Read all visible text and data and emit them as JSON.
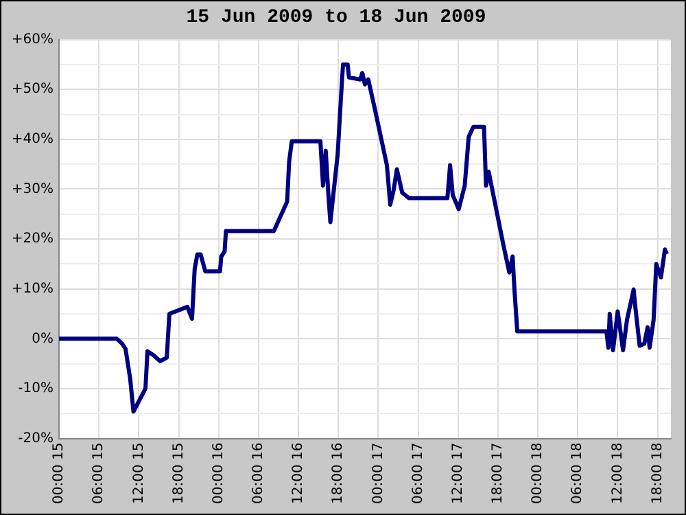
{
  "chart_data": {
    "type": "line",
    "title": "15 Jun 2009 to 18 Jun 2009",
    "x": [
      "2009-06-15T00:00",
      "2009-06-15T08:42",
      "2009-06-15T09:30",
      "2009-06-15T10:00",
      "2009-06-15T10:42",
      "2009-06-15T11:12",
      "2009-06-15T13:00",
      "2009-06-15T13:18",
      "2009-06-15T14:12",
      "2009-06-15T15:12",
      "2009-06-15T16:12",
      "2009-06-15T16:36",
      "2009-06-15T19:18",
      "2009-06-15T20:00",
      "2009-06-15T20:24",
      "2009-06-15T20:48",
      "2009-06-15T21:18",
      "2009-06-15T22:00",
      "2009-06-16T00:12",
      "2009-06-16T00:24",
      "2009-06-16T00:54",
      "2009-06-16T01:06",
      "2009-06-16T08:18",
      "2009-06-16T10:18",
      "2009-06-16T10:36",
      "2009-06-16T11:00",
      "2009-06-16T15:18",
      "2009-06-16T15:42",
      "2009-06-16T16:06",
      "2009-06-16T16:30",
      "2009-06-16T16:48",
      "2009-06-16T17:18",
      "2009-06-16T17:54",
      "2009-06-16T18:24",
      "2009-06-16T18:42",
      "2009-06-16T19:24",
      "2009-06-16T19:36",
      "2009-06-16T21:18",
      "2009-06-16T21:36",
      "2009-06-16T22:00",
      "2009-06-16T22:30",
      "2009-06-16T23:30",
      "2009-06-17T01:18",
      "2009-06-17T01:48",
      "2009-06-17T02:18",
      "2009-06-17T02:48",
      "2009-06-17T03:36",
      "2009-06-17T04:36",
      "2009-06-17T10:24",
      "2009-06-17T10:48",
      "2009-06-17T11:12",
      "2009-06-17T12:06",
      "2009-06-17T13:00",
      "2009-06-17T13:36",
      "2009-06-17T14:18",
      "2009-06-17T15:54",
      "2009-06-17T16:12",
      "2009-06-17T16:36",
      "2009-06-17T17:06",
      "2009-06-17T18:48",
      "2009-06-17T19:42",
      "2009-06-17T20:12",
      "2009-06-17T20:30",
      "2009-06-17T20:54",
      "2009-06-18T10:18",
      "2009-06-18T10:36",
      "2009-06-18T10:48",
      "2009-06-18T11:18",
      "2009-06-18T12:00",
      "2009-06-18T12:48",
      "2009-06-18T13:24",
      "2009-06-18T14:24",
      "2009-06-18T14:36",
      "2009-06-18T15:18",
      "2009-06-18T16:00",
      "2009-06-18T16:30",
      "2009-06-18T16:48",
      "2009-06-18T17:24",
      "2009-06-18T17:48",
      "2009-06-18T18:30",
      "2009-06-18T19:06",
      "2009-06-18T19:24"
    ],
    "series": [
      {
        "color": "#000080",
        "values": [
          0,
          0,
          -1,
          -2,
          -8,
          -14.6,
          -10,
          -2.5,
          -3.3,
          -4.5,
          -3.8,
          5,
          6.4,
          4,
          14,
          16.9,
          16.9,
          13.5,
          13.5,
          16.5,
          17.5,
          21.6,
          21.6,
          27.5,
          35.5,
          39.6,
          39.6,
          30.7,
          37.7,
          29,
          23.4,
          29.6,
          37,
          48.5,
          55,
          55,
          52.4,
          52,
          53.3,
          51,
          52,
          46,
          34.8,
          26.9,
          29.7,
          34,
          29.3,
          28.2,
          28.2,
          34.8,
          28.8,
          26,
          30.7,
          40.5,
          42.5,
          42.5,
          30.7,
          33.5,
          30.2,
          18.9,
          13.3,
          16.5,
          9.4,
          1.5,
          1.5,
          -1.8,
          5,
          -2.3,
          5.5,
          -2.3,
          3.8,
          9.9,
          7,
          -1.4,
          -1,
          2.3,
          -1.8,
          3.8,
          15,
          12.3,
          17.9,
          17
        ]
      }
    ],
    "xlim": [
      "2009-06-15T00:00",
      "2009-06-18T20:00"
    ],
    "xticks": [
      {
        "value": "2009-06-15T00:00",
        "label": "00:00 15"
      },
      {
        "value": "2009-06-15T06:00",
        "label": "06:00 15"
      },
      {
        "value": "2009-06-15T12:00",
        "label": "12:00 15"
      },
      {
        "value": "2009-06-15T18:00",
        "label": "18:00 15"
      },
      {
        "value": "2009-06-16T00:00",
        "label": "00:00 16"
      },
      {
        "value": "2009-06-16T06:00",
        "label": "06:00 16"
      },
      {
        "value": "2009-06-16T12:00",
        "label": "12:00 16"
      },
      {
        "value": "2009-06-16T18:00",
        "label": "18:00 16"
      },
      {
        "value": "2009-06-17T00:00",
        "label": "00:00 17"
      },
      {
        "value": "2009-06-17T06:00",
        "label": "06:00 17"
      },
      {
        "value": "2009-06-17T12:00",
        "label": "12:00 17"
      },
      {
        "value": "2009-06-17T18:00",
        "label": "18:00 17"
      },
      {
        "value": "2009-06-18T00:00",
        "label": "00:00 18"
      },
      {
        "value": "2009-06-18T06:00",
        "label": "06:00 18"
      },
      {
        "value": "2009-06-18T12:00",
        "label": "12:00 18"
      },
      {
        "value": "2009-06-18T18:00",
        "label": "18:00 18"
      }
    ],
    "ylim": [
      -20,
      60
    ],
    "yticks": [
      {
        "value": -20,
        "label": "-20%"
      },
      {
        "value": -15,
        "label": null
      },
      {
        "value": -10,
        "label": "-10%"
      },
      {
        "value": -5,
        "label": null
      },
      {
        "value": 0,
        "label": "0%"
      },
      {
        "value": 5,
        "label": null
      },
      {
        "value": 10,
        "label": "+10%"
      },
      {
        "value": 15,
        "label": null
      },
      {
        "value": 20,
        "label": "+20%"
      },
      {
        "value": 25,
        "label": null
      },
      {
        "value": 30,
        "label": "+30%"
      },
      {
        "value": 35,
        "label": null
      },
      {
        "value": 40,
        "label": "+40%"
      },
      {
        "value": 45,
        "label": null
      },
      {
        "value": 50,
        "label": "+50%"
      },
      {
        "value": 55,
        "label": null
      },
      {
        "value": 60,
        "label": "+60%"
      }
    ],
    "grid": true,
    "marker": "none",
    "line_style": "solid"
  }
}
